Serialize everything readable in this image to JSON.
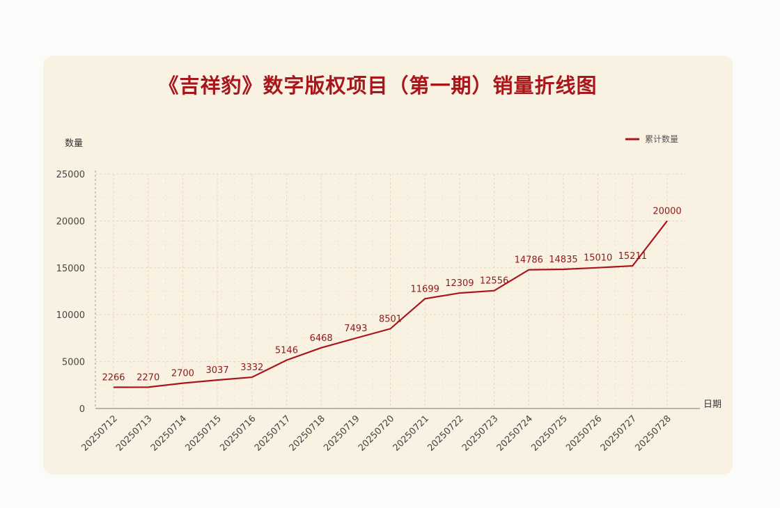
{
  "chart_data": {
    "type": "line",
    "title": "《吉祥豹》数字版权项目（第一期）销量折线图",
    "ylabel": "数量",
    "xlabel": "日期",
    "legend": "累计数量",
    "legend_position": "top-right",
    "grid": true,
    "ylim": [
      0,
      25000
    ],
    "yticks": [
      0,
      5000,
      10000,
      15000,
      20000,
      25000
    ],
    "categories": [
      "20250712",
      "20250713",
      "20250714",
      "20250715",
      "20250716",
      "20250717",
      "20250718",
      "20250719",
      "20250720",
      "20250721",
      "20250722",
      "20250723",
      "20250724",
      "20250725",
      "20250726",
      "20250727",
      "20250728"
    ],
    "series": [
      {
        "name": "累计数量",
        "values": [
          2266,
          2270,
          2700,
          3037,
          3332,
          5146,
          6468,
          7493,
          8501,
          11699,
          12309,
          12556,
          14786,
          14835,
          15010,
          15211,
          20000
        ]
      }
    ],
    "colors": {
      "line": "#a8161b",
      "title": "#a8161b",
      "background": "#f9f2e3",
      "grid": "#e6d7bd"
    }
  }
}
